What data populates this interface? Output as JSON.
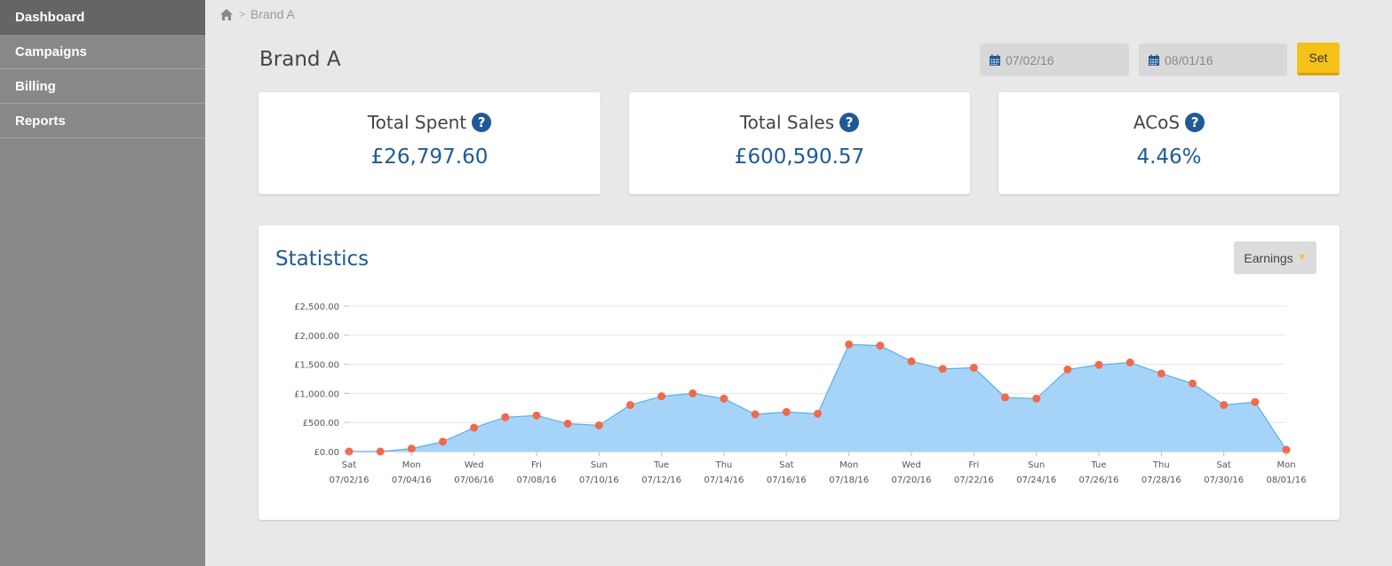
{
  "sidebar": {
    "items": [
      {
        "label": "Dashboard",
        "active": true
      },
      {
        "label": "Campaigns"
      },
      {
        "label": "Billing"
      },
      {
        "label": "Reports"
      }
    ]
  },
  "breadcrumb": {
    "icon": "home-icon",
    "separator": ">",
    "current": "Brand A"
  },
  "page": {
    "title": "Brand A"
  },
  "filters": {
    "start_date": "07/02/16",
    "end_date": "08/01/16",
    "set_label": "Set",
    "accent": "#f4c21a"
  },
  "cards": [
    {
      "label": "Total Spent",
      "value": "£26,797.60"
    },
    {
      "label": "Total Sales",
      "value": "£600,590.57"
    },
    {
      "label": "ACoS",
      "value": "4.46%"
    }
  ],
  "statistics": {
    "title": "Statistics",
    "metric_label": "Earnings"
  },
  "chart_data": {
    "type": "area",
    "ylim": [
      0,
      2500
    ],
    "y_ticks": [
      "£0.00",
      "£500.00",
      "£1,000.00",
      "£1,500.00",
      "£2,000.00",
      "£2,500.00"
    ],
    "x_labels": [
      {
        "day": "Sat",
        "date": "07/02/16"
      },
      {
        "day": "Mon",
        "date": "07/04/16"
      },
      {
        "day": "Wed",
        "date": "07/06/16"
      },
      {
        "day": "Fri",
        "date": "07/08/16"
      },
      {
        "day": "Sun",
        "date": "07/10/16"
      },
      {
        "day": "Tue",
        "date": "07/12/16"
      },
      {
        "day": "Thu",
        "date": "07/14/16"
      },
      {
        "day": "Sat",
        "date": "07/16/16"
      },
      {
        "day": "Mon",
        "date": "07/18/16"
      },
      {
        "day": "Wed",
        "date": "07/20/16"
      },
      {
        "day": "Fri",
        "date": "07/22/16"
      },
      {
        "day": "Sun",
        "date": "07/24/16"
      },
      {
        "day": "Tue",
        "date": "07/26/16"
      },
      {
        "day": "Thu",
        "date": "07/28/16"
      },
      {
        "day": "Sat",
        "date": "07/30/16"
      },
      {
        "day": "Mon",
        "date": "08/01/16"
      }
    ],
    "values": [
      0,
      0,
      50,
      170,
      410,
      590,
      620,
      480,
      450,
      800,
      950,
      1000,
      910,
      640,
      680,
      650,
      1840,
      1820,
      1550,
      1420,
      1440,
      930,
      910,
      1410,
      1490,
      1530,
      1340,
      1170,
      800,
      850,
      30
    ],
    "grid": true,
    "colors": {
      "fill": "#a6d4f8",
      "line": "#5aaee8",
      "point": "#f06a4b"
    }
  }
}
